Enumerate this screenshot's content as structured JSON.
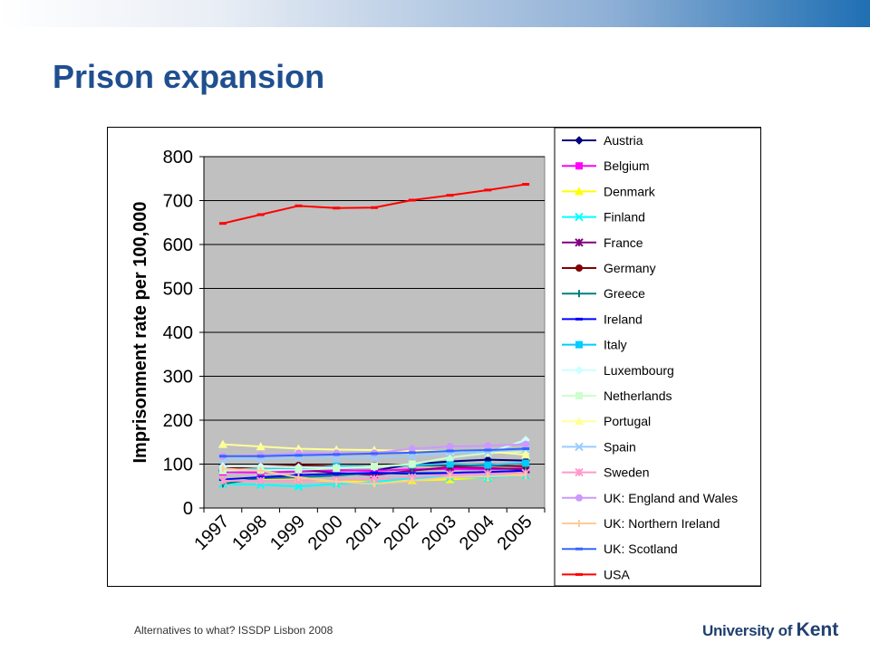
{
  "slide": {
    "title": "Prison expansion",
    "footer": "Alternatives to what? ISSDP Lisbon 2008",
    "logo": {
      "prefix": "University of",
      "name": "Kent"
    }
  },
  "chart_data": {
    "type": "line",
    "title": "",
    "xlabel": "",
    "ylabel": "Imprisonment rate per 100,000",
    "x_tick_labels": [
      "1997",
      "1998",
      "1999",
      "2000",
      "2001",
      "2002",
      "2003",
      "2004",
      "2005"
    ],
    "ylim": [
      0,
      800
    ],
    "yticks": [
      0,
      100,
      200,
      300,
      400,
      500,
      600,
      700,
      800
    ],
    "grid": true,
    "plot_background": "#c0c0c0",
    "legend_position": "right",
    "series": [
      {
        "name": "Austria",
        "color": "#000080",
        "marker": "diamond",
        "values": [
          86,
          87,
          86,
          86,
          85,
          100,
          106,
          110,
          108
        ]
      },
      {
        "name": "Belgium",
        "color": "#ff00ff",
        "marker": "square",
        "values": [
          82,
          81,
          83,
          86,
          85,
          88,
          89,
          88,
          91
        ]
      },
      {
        "name": "Denmark",
        "color": "#ffff00",
        "marker": "triangle",
        "values": [
          62,
          64,
          64,
          61,
          59,
          63,
          65,
          70,
          77
        ]
      },
      {
        "name": "Finland",
        "color": "#00ffff",
        "marker": "x",
        "values": [
          55,
          53,
          49,
          55,
          59,
          68,
          70,
          69,
          75
        ]
      },
      {
        "name": "France",
        "color": "#800080",
        "marker": "star",
        "values": [
          90,
          86,
          88,
          80,
          75,
          85,
          93,
          91,
          88
        ]
      },
      {
        "name": "Germany",
        "color": "#800000",
        "marker": "circle",
        "values": [
          90,
          95,
          97,
          95,
          96,
          98,
          97,
          97,
          95
        ]
      },
      {
        "name": "Greece",
        "color": "#008080",
        "marker": "plus",
        "values": [
          55,
          68,
          70,
          74,
          80,
          80,
          80,
          82,
          85
        ]
      },
      {
        "name": "Ireland",
        "color": "#0000ff",
        "marker": "dash",
        "values": [
          65,
          70,
          75,
          78,
          80,
          78,
          80,
          82,
          85
        ]
      },
      {
        "name": "Italy",
        "color": "#00ccff",
        "marker": "square",
        "values": [
          87,
          88,
          89,
          95,
          95,
          98,
          100,
          98,
          102
        ]
      },
      {
        "name": "Luxembourg",
        "color": "#ccffff",
        "marker": "diamond",
        "values": [
          95,
          95,
          93,
          92,
          93,
          100,
          115,
          125,
          155
        ]
      },
      {
        "name": "Netherlands",
        "color": "#ccffcc",
        "marker": "square",
        "values": [
          85,
          86,
          87,
          90,
          95,
          100,
          115,
          125,
          128
        ]
      },
      {
        "name": "Portugal",
        "color": "#ffff99",
        "marker": "triangle",
        "values": [
          145,
          140,
          135,
          133,
          132,
          130,
          130,
          129,
          121
        ]
      },
      {
        "name": "Spain",
        "color": "#99ccff",
        "marker": "x",
        "values": [
          110,
          112,
          114,
          114,
          115,
          118,
          125,
          128,
          135
        ]
      },
      {
        "name": "Sweden",
        "color": "#ff99cc",
        "marker": "star",
        "values": [
          62,
          62,
          63,
          64,
          66,
          70,
          76,
          78,
          80
        ]
      },
      {
        "name": "UK: England and Wales",
        "color": "#cc99ff",
        "marker": "circle",
        "values": [
          118,
          120,
          125,
          125,
          125,
          135,
          140,
          142,
          145
        ]
      },
      {
        "name": "UK: Northern Ireland",
        "color": "#ffcc99",
        "marker": "plus",
        "values": [
          90,
          85,
          70,
          60,
          55,
          62,
          70,
          72,
          75
        ]
      },
      {
        "name": "UK: Scotland",
        "color": "#3366ff",
        "marker": "dash",
        "values": [
          118,
          118,
          120,
          122,
          124,
          126,
          130,
          132,
          135
        ]
      },
      {
        "name": "USA",
        "color": "#ff0000",
        "marker": "dash",
        "values": [
          648,
          668,
          688,
          683,
          684,
          701,
          712,
          724,
          737
        ]
      }
    ]
  }
}
